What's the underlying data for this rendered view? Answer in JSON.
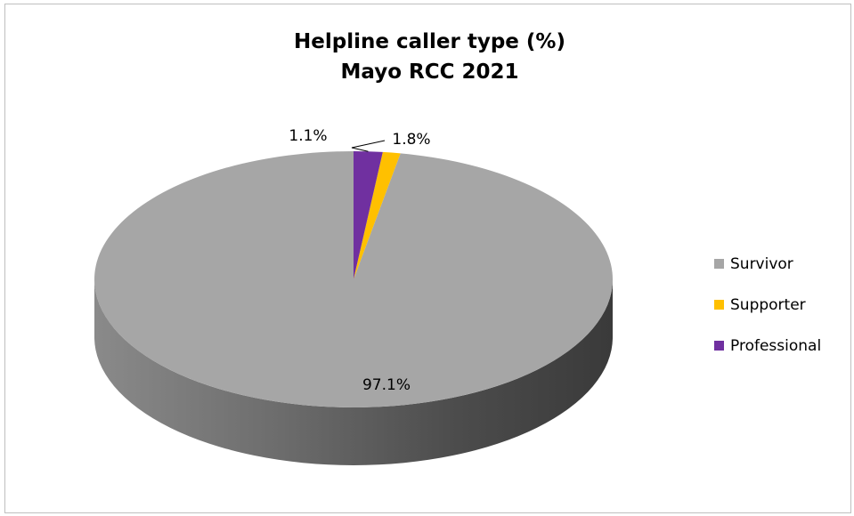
{
  "chart_data": {
    "type": "pie",
    "title": [
      "Helpline caller type (%)",
      "Mayo RCC 2021"
    ],
    "slices": [
      {
        "name": "Survivor",
        "value": 97.1,
        "label": "97.1%",
        "color": "#a6a6a6"
      },
      {
        "name": "Supporter",
        "value": 1.1,
        "label": "1.1%",
        "color": "#ffc000"
      },
      {
        "name": "Professional",
        "value": 1.8,
        "label": "1.8%",
        "color": "#7030a0"
      }
    ],
    "legend_position": "right",
    "style": "3d"
  }
}
